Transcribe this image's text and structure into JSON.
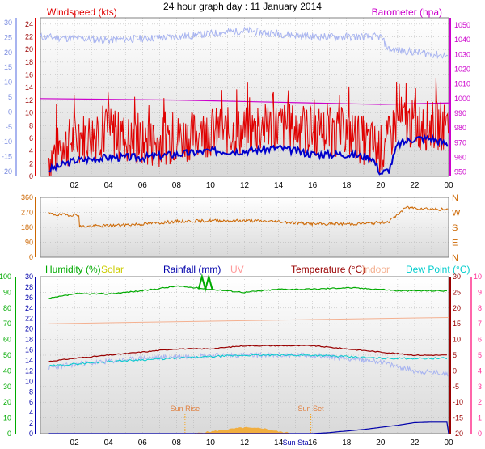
{
  "title": "24 hour graph day : 11 January 2014",
  "colors": {
    "wind": "#e00000",
    "gust_avg": "#0000cc",
    "barometer": "#cc00cc",
    "temp_light": "#a8b4f0",
    "direction": "#cc6600",
    "humidity": "#00aa00",
    "solar": "#f5a623",
    "rainfall": "#0000aa",
    "uv": "#ff9999",
    "temperature": "#990000",
    "indoor": "#f4b090",
    "dewpoint": "#00cccc",
    "grid": "#b0b0b0",
    "axis_text": "#990000"
  },
  "x_ticks": [
    "02",
    "04",
    "06",
    "08",
    "10",
    "12",
    "14",
    "16",
    "18",
    "20",
    "22",
    "00"
  ],
  "chart_data": [
    {
      "type": "line",
      "title": "Windspeed (kts)",
      "ylabel_right": "Barometer (hpa)",
      "left_axis_labels": [
        "0",
        "2",
        "4",
        "6",
        "8",
        "10",
        "12",
        "14",
        "16",
        "18",
        "20",
        "22",
        "24"
      ],
      "ylim": [
        0,
        25
      ],
      "outer_left_labels": [
        "30",
        "25",
        "20",
        "15",
        "10",
        "5",
        "0",
        "-5",
        "-10",
        "-15",
        "-20"
      ],
      "right_axis_labels": [
        "950",
        "960",
        "970",
        "980",
        "990",
        "1000",
        "1010",
        "1020",
        "1030",
        "1040",
        "1050"
      ],
      "right_ylim": [
        947,
        1055
      ],
      "series": [
        {
          "key": "wind",
          "x": [
            0.5,
            2,
            4,
            6,
            8,
            10,
            12,
            14,
            16,
            18,
            19.5,
            20.2,
            21,
            22,
            23,
            24
          ],
          "values": [
            3,
            6,
            7,
            5,
            6,
            7,
            7,
            8,
            7,
            7,
            5,
            4,
            9,
            8,
            8,
            8
          ]
        },
        {
          "key": "avg",
          "x": [
            0.5,
            2,
            4,
            6,
            8,
            10,
            12,
            14,
            16,
            18,
            19.5,
            20,
            20.5,
            21,
            22,
            23,
            24
          ],
          "values": [
            1,
            2.5,
            3,
            3,
            3.5,
            4,
            4,
            4.5,
            3.5,
            3.5,
            3,
            0.5,
            1,
            5,
            6,
            6,
            5
          ]
        },
        {
          "key": "barometer",
          "x": [
            0,
            4,
            8,
            12,
            16,
            20,
            24
          ],
          "values": [
            1000,
            999.5,
            999,
            998,
            997,
            996,
            997
          ]
        },
        {
          "key": "temp_light",
          "x": [
            0,
            4,
            8,
            12,
            16,
            20,
            20.5,
            24
          ],
          "values": [
            22,
            21.5,
            22,
            23,
            22,
            22,
            20,
            19
          ]
        }
      ]
    },
    {
      "type": "line",
      "title": "",
      "left_axis_labels": [
        "0",
        "90",
        "180",
        "270",
        "360"
      ],
      "ylim": [
        0,
        360
      ],
      "compass_labels": [
        "N",
        "W",
        "S",
        "E",
        "N"
      ],
      "series": [
        {
          "key": "direction",
          "x": [
            0.5,
            1,
            2.2,
            2.3,
            4,
            6,
            8,
            10,
            12,
            14,
            16,
            18,
            19.5,
            20.5,
            21.5,
            24
          ],
          "values": [
            262,
            255,
            255,
            185,
            190,
            200,
            215,
            220,
            220,
            215,
            200,
            200,
            205,
            215,
            300,
            285
          ]
        }
      ]
    },
    {
      "type": "line",
      "legend": [
        "Humidity (%)",
        "Solar",
        "Rainfall (mm)",
        "UV",
        "Temperature (°C)",
        "Indoor",
        "Dew Point (°C)"
      ],
      "hum_labels": [
        "0",
        "10",
        "20",
        "30",
        "40",
        "50",
        "60",
        "70",
        "80",
        "90",
        "100"
      ],
      "rain_labels": [
        "0",
        "2",
        "4",
        "6",
        "8",
        "10",
        "12",
        "14",
        "16",
        "18",
        "20",
        "22",
        "24",
        "26",
        "28",
        "30"
      ],
      "temp_labels": [
        "-20",
        "-15",
        "-10",
        "-5",
        "0",
        "5",
        "10",
        "15",
        "20",
        "25",
        "30"
      ],
      "uv_labels": [
        "0",
        "1",
        "2",
        "3",
        "4",
        "5",
        "6",
        "7",
        "8",
        "9",
        "10"
      ],
      "annotations": [
        "Sun Rise",
        "Sun Set",
        "Sun Sta"
      ],
      "series": [
        {
          "key": "humidity",
          "x": [
            0.5,
            2,
            4,
            6,
            8,
            10,
            12,
            14,
            16,
            18,
            20,
            21,
            22,
            24
          ],
          "values": [
            86,
            89,
            89,
            91,
            94,
            92,
            90,
            92,
            92,
            93,
            92,
            91,
            91,
            91
          ]
        },
        {
          "key": "temperature",
          "x": [
            0.5,
            2,
            4,
            6,
            8,
            10,
            12,
            14,
            16,
            18,
            20,
            22,
            24
          ],
          "values": [
            3,
            4,
            5,
            6,
            7,
            7,
            8,
            8,
            8,
            7,
            6,
            5,
            5
          ]
        },
        {
          "key": "dewpoint",
          "x": [
            0.5,
            4,
            8,
            12,
            16,
            20,
            24
          ],
          "values": [
            1.5,
            3,
            4,
            5,
            5,
            4,
            4
          ]
        },
        {
          "key": "indoor",
          "x": [
            0.5,
            24
          ],
          "values": [
            15,
            17
          ]
        },
        {
          "key": "temp_light",
          "x": [
            0.5,
            2,
            4,
            6,
            8,
            10,
            12,
            14,
            16,
            18,
            20,
            20.5,
            22,
            24
          ],
          "values": [
            1,
            2,
            3,
            4,
            4.5,
            5,
            5,
            5,
            5,
            4,
            3,
            2,
            0,
            -1
          ]
        },
        {
          "key": "rainfall",
          "x": [
            0.5,
            14,
            16,
            17,
            18,
            19,
            20,
            21,
            22,
            23,
            24
          ],
          "values": [
            0,
            0,
            0,
            0.2,
            0.5,
            0.8,
            1.2,
            1.6,
            2.1,
            2.2,
            2.2
          ]
        },
        {
          "key": "solar",
          "x": [
            9,
            10,
            11,
            12,
            12.5,
            13,
            14,
            15
          ],
          "values": [
            0,
            0.4,
            0.8,
            1.2,
            1.0,
            1.1,
            0.4,
            0
          ]
        }
      ]
    }
  ]
}
